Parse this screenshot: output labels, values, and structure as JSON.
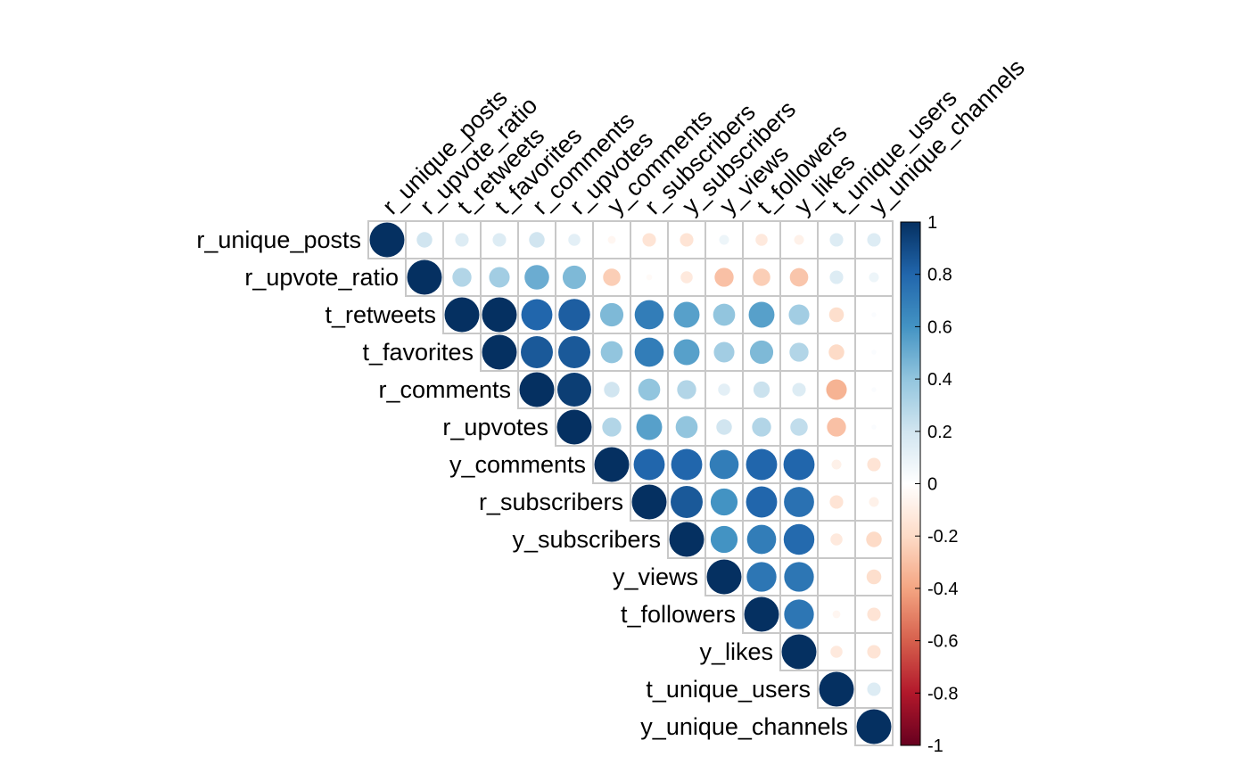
{
  "chart_data": {
    "type": "heatmap",
    "style": "correlation-matrix-upper-circles",
    "variables": [
      "r_unique_posts",
      "r_upvote_ratio",
      "t_retweets",
      "t_favorites",
      "r_comments",
      "r_upvotes",
      "y_comments",
      "r_subscribers",
      "y_subscribers",
      "y_views",
      "t_followers",
      "y_likes",
      "t_unique_users",
      "y_unique_channels"
    ],
    "matrix": [
      [
        1,
        0.2,
        0.15,
        0.15,
        0.2,
        0.12,
        -0.05,
        -0.15,
        -0.15,
        0.08,
        -0.12,
        -0.08,
        0.15,
        0.15
      ],
      [
        null,
        1,
        0.3,
        0.35,
        0.5,
        0.45,
        -0.25,
        -0.03,
        -0.12,
        -0.3,
        -0.25,
        -0.28,
        0.15,
        0.08
      ],
      [
        null,
        null,
        1,
        1,
        0.8,
        0.83,
        0.45,
        0.7,
        0.55,
        0.4,
        0.55,
        0.35,
        -0.18,
        0.02
      ],
      [
        null,
        null,
        null,
        1,
        0.85,
        0.85,
        0.4,
        0.7,
        0.55,
        0.35,
        0.45,
        0.3,
        -0.2,
        0.02
      ],
      [
        null,
        null,
        null,
        null,
        1,
        0.95,
        0.2,
        0.4,
        0.3,
        0.12,
        0.22,
        0.15,
        -0.35,
        0.02
      ],
      [
        null,
        null,
        null,
        null,
        null,
        1,
        0.3,
        0.55,
        0.4,
        0.2,
        0.3,
        0.25,
        -0.3,
        0.02
      ],
      [
        null,
        null,
        null,
        null,
        null,
        null,
        1,
        0.8,
        0.8,
        0.7,
        0.8,
        0.8,
        -0.08,
        -0.15
      ],
      [
        null,
        null,
        null,
        null,
        null,
        null,
        null,
        1,
        0.85,
        0.6,
        0.8,
        0.75,
        -0.15,
        -0.08
      ],
      [
        null,
        null,
        null,
        null,
        null,
        null,
        null,
        null,
        1,
        0.6,
        0.7,
        0.78,
        -0.12,
        -0.2
      ],
      [
        null,
        null,
        null,
        null,
        null,
        null,
        null,
        null,
        null,
        1,
        0.73,
        0.73,
        0.0,
        -0.18
      ],
      [
        null,
        null,
        null,
        null,
        null,
        null,
        null,
        null,
        null,
        null,
        1,
        0.73,
        -0.05,
        -0.15
      ],
      [
        null,
        null,
        null,
        null,
        null,
        null,
        null,
        null,
        null,
        null,
        null,
        1,
        -0.12,
        -0.15
      ],
      [
        null,
        null,
        null,
        null,
        null,
        null,
        null,
        null,
        null,
        null,
        null,
        null,
        1,
        0.15
      ],
      [
        null,
        null,
        null,
        null,
        null,
        null,
        null,
        null,
        null,
        null,
        null,
        null,
        null,
        1
      ]
    ],
    "colorbar": {
      "ticks": [
        "1",
        "0.8",
        "0.6",
        "0.4",
        "0.2",
        "0",
        "-0.2",
        "-0.4",
        "-0.6",
        "-0.8",
        "-1"
      ],
      "range": [
        -1,
        1
      ],
      "colors": [
        "#67001F",
        "#B2182B",
        "#D6604D",
        "#F4A582",
        "#FDDBC7",
        "#FFFFFF",
        "#D1E5F0",
        "#92C5DE",
        "#4393C3",
        "#2166AC",
        "#053061"
      ]
    },
    "title": "",
    "xlabel": "",
    "ylabel": ""
  }
}
